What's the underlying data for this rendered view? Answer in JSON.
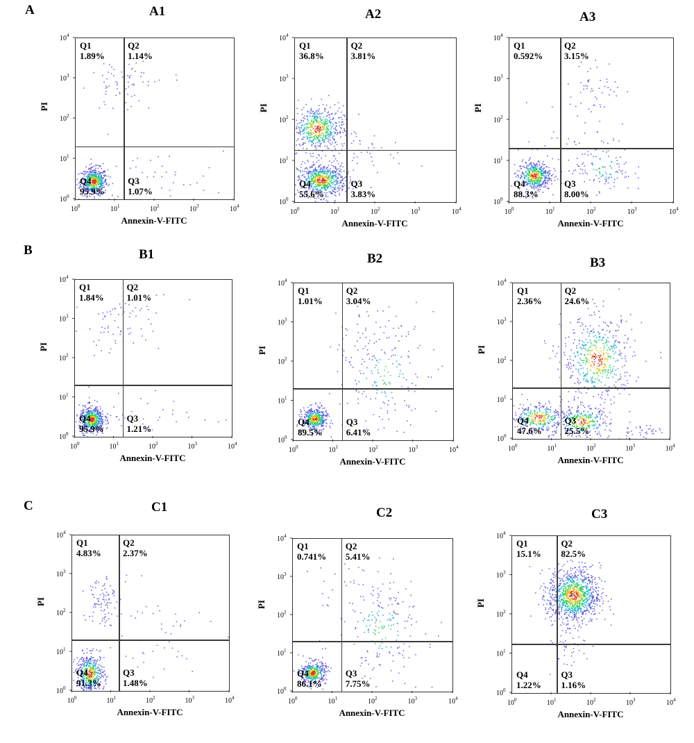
{
  "row_labels": [
    "A",
    "B",
    "C"
  ],
  "axis": {
    "x_label": "Annexin-V-FITC",
    "y_label": "PI",
    "tick_bases": [
      "10",
      "10",
      "10",
      "10",
      "10"
    ],
    "tick_exps": [
      "0",
      "1",
      "2",
      "3",
      "4"
    ]
  },
  "colors": {
    "sparse": "#3b3bd1",
    "mid": "#19a8d8",
    "dense": "#2fcf58",
    "core": "#e6c21a",
    "hot": "#d33a1d",
    "gate": "#3a3a3a"
  },
  "chart_data": [
    {
      "type": "scatter",
      "title": "A1",
      "xlabel": "Annexin-V-FITC",
      "ylabel": "PI",
      "scale": "log",
      "xlim": [
        1,
        10000
      ],
      "ylim": [
        1,
        10000
      ],
      "gate": {
        "x": 17,
        "y": 20
      },
      "quadrants": [
        {
          "name": "Q1",
          "pct": "1.89%"
        },
        {
          "name": "Q2",
          "pct": "1.14%"
        },
        {
          "name": "Q3",
          "pct": "1.07%"
        },
        {
          "name": "Q4",
          "pct": "95.9%"
        }
      ]
    },
    {
      "type": "scatter",
      "title": "A2",
      "xlabel": "Annexin-V-FITC",
      "ylabel": "PI",
      "scale": "log",
      "xlim": [
        1,
        10000
      ],
      "ylim": [
        1,
        10000
      ],
      "gate": {
        "x": 20,
        "y": 18
      },
      "quadrants": [
        {
          "name": "Q1",
          "pct": "36.8%"
        },
        {
          "name": "Q2",
          "pct": "3.81%"
        },
        {
          "name": "Q3",
          "pct": "3.83%"
        },
        {
          "name": "Q4",
          "pct": "55.6%"
        }
      ]
    },
    {
      "type": "scatter",
      "title": "A3",
      "xlabel": "Annexin-V-FITC",
      "ylabel": "PI",
      "scale": "log",
      "xlim": [
        1,
        10000
      ],
      "ylim": [
        1,
        10000
      ],
      "gate": {
        "x": 18,
        "y": 20
      },
      "quadrants": [
        {
          "name": "Q1",
          "pct": "0.592%"
        },
        {
          "name": "Q2",
          "pct": "3.15%"
        },
        {
          "name": "Q3",
          "pct": "8.00%"
        },
        {
          "name": "Q4",
          "pct": "88.3%"
        }
      ]
    },
    {
      "type": "scatter",
      "title": "B1",
      "xlabel": "Annexin-V-FITC",
      "ylabel": "PI",
      "scale": "log",
      "xlim": [
        1,
        10000
      ],
      "ylim": [
        1,
        10000
      ],
      "gate": {
        "x": 17,
        "y": 20
      },
      "quadrants": [
        {
          "name": "Q1",
          "pct": "1.84%"
        },
        {
          "name": "Q2",
          "pct": "1.01%"
        },
        {
          "name": "Q3",
          "pct": "1.21%"
        },
        {
          "name": "Q4",
          "pct": "95.9%"
        }
      ]
    },
    {
      "type": "scatter",
      "title": "B2",
      "xlabel": "Annexin-V-FITC",
      "ylabel": "PI",
      "scale": "log",
      "xlim": [
        1,
        10000
      ],
      "ylim": [
        1,
        10000
      ],
      "gate": {
        "x": 17,
        "y": 20
      },
      "quadrants": [
        {
          "name": "Q1",
          "pct": "1.01%"
        },
        {
          "name": "Q2",
          "pct": "3.04%"
        },
        {
          "name": "Q3",
          "pct": "6.41%"
        },
        {
          "name": "Q4",
          "pct": "89.5%"
        }
      ]
    },
    {
      "type": "scatter",
      "title": "B3",
      "xlabel": "Annexin-V-FITC",
      "ylabel": "PI",
      "scale": "log",
      "xlim": [
        1,
        10000
      ],
      "ylim": [
        1,
        10000
      ],
      "gate": {
        "x": 17,
        "y": 20
      },
      "quadrants": [
        {
          "name": "Q1",
          "pct": "2.36%"
        },
        {
          "name": "Q2",
          "pct": "24.6%"
        },
        {
          "name": "Q3",
          "pct": "25.5%"
        },
        {
          "name": "Q4",
          "pct": "47.6%"
        }
      ]
    },
    {
      "type": "scatter",
      "title": "C1",
      "xlabel": "Annexin-V-FITC",
      "ylabel": "PI",
      "scale": "log",
      "xlim": [
        1,
        10000
      ],
      "ylim": [
        1,
        10000
      ],
      "gate": {
        "x": 16,
        "y": 20
      },
      "quadrants": [
        {
          "name": "Q1",
          "pct": "4.83%"
        },
        {
          "name": "Q2",
          "pct": "2.37%"
        },
        {
          "name": "Q3",
          "pct": "1.48%"
        },
        {
          "name": "Q4",
          "pct": "91.3%"
        }
      ]
    },
    {
      "type": "scatter",
      "title": "C2",
      "xlabel": "Annexin-V-FITC",
      "ylabel": "PI",
      "scale": "log",
      "xlim": [
        1,
        10000
      ],
      "ylim": [
        1,
        10000
      ],
      "gate": {
        "x": 17,
        "y": 20
      },
      "quadrants": [
        {
          "name": "Q1",
          "pct": "0.741%"
        },
        {
          "name": "Q2",
          "pct": "5.41%"
        },
        {
          "name": "Q3",
          "pct": "7.75%"
        },
        {
          "name": "Q4",
          "pct": "86.1%"
        }
      ]
    },
    {
      "type": "scatter",
      "title": "C3",
      "xlabel": "Annexin-V-FITC",
      "ylabel": "PI",
      "scale": "log",
      "xlim": [
        1,
        10000
      ],
      "ylim": [
        1,
        10000
      ],
      "gate": {
        "x": 14,
        "y": 17
      },
      "quadrants": [
        {
          "name": "Q1",
          "pct": "15.1%"
        },
        {
          "name": "Q2",
          "pct": "82.5%"
        },
        {
          "name": "Q3",
          "pct": "1.16%"
        },
        {
          "name": "Q4",
          "pct": "1.22%"
        }
      ]
    }
  ]
}
